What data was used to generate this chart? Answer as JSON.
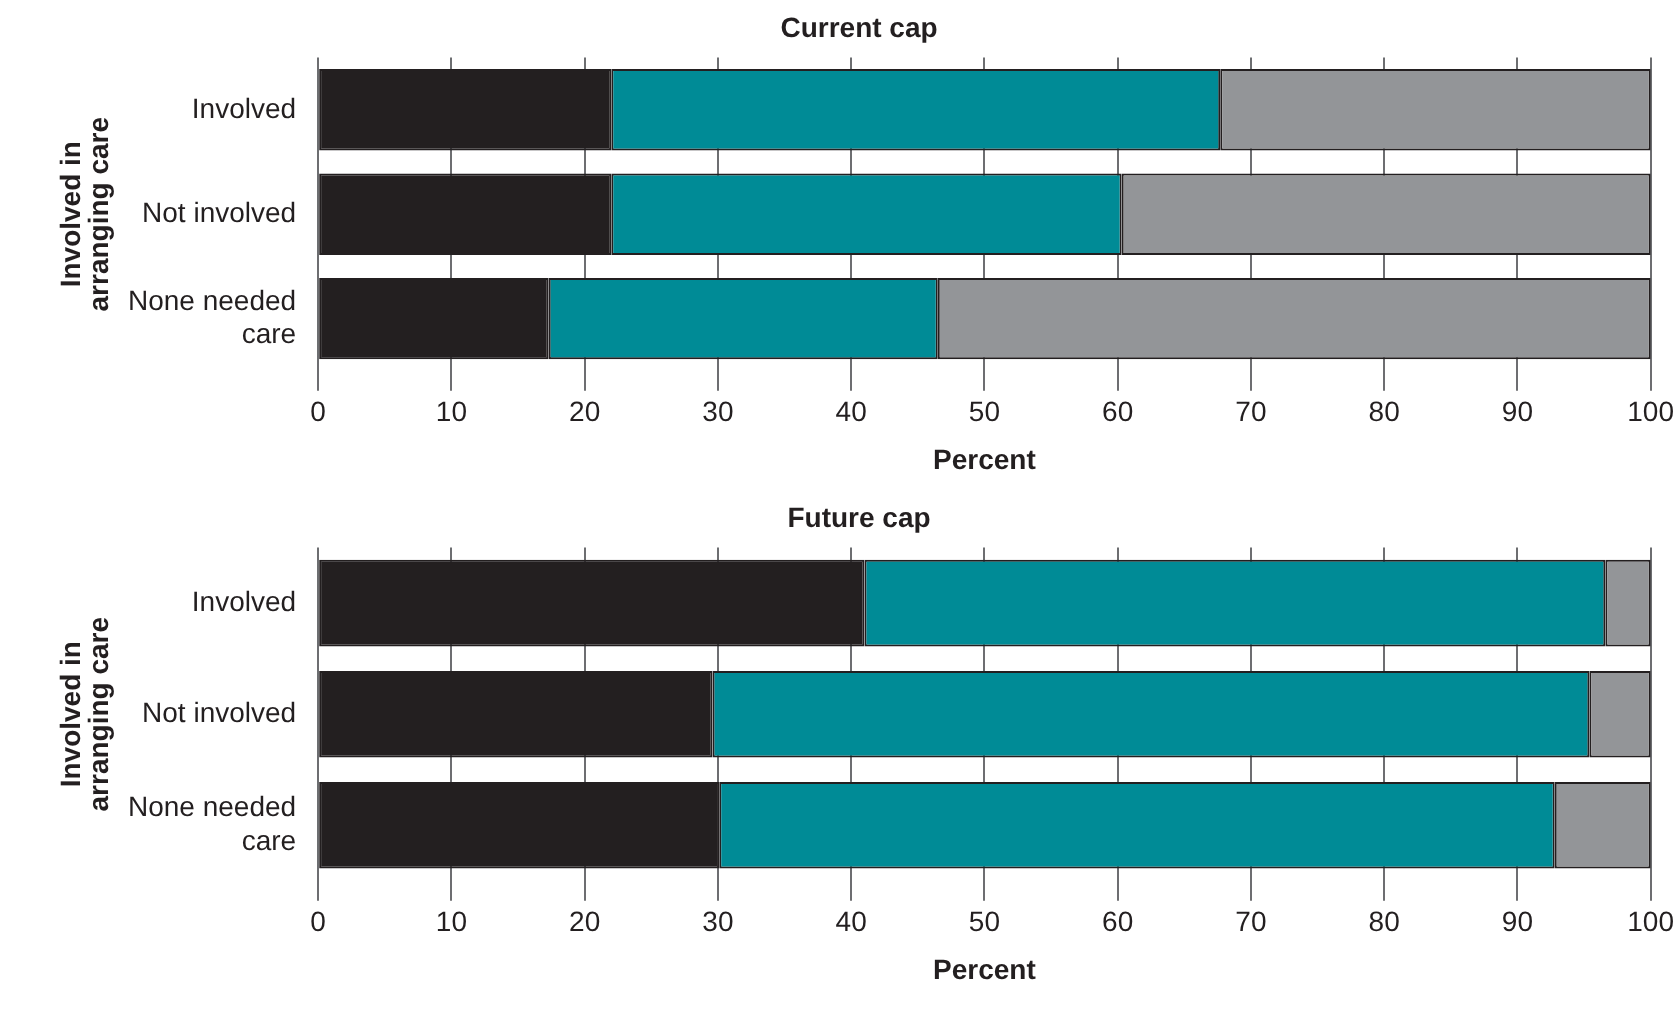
{
  "chart_data": [
    {
      "type": "bar",
      "orientation": "horizontal",
      "stacked": true,
      "title": "Current cap",
      "xlabel": "Percent",
      "ylabel": "Involved in\narranging care",
      "categories": [
        "Involved",
        "Not involved",
        "None needed care"
      ],
      "xlim": [
        0,
        100
      ],
      "xticks": [
        0,
        10,
        20,
        30,
        40,
        50,
        60,
        70,
        80,
        90,
        100
      ],
      "grid": "x",
      "legend": false,
      "series": [
        {
          "color": "#231f20",
          "values": [
            22,
            22,
            17.3
          ]
        },
        {
          "color": "#008b96",
          "values": [
            45.7,
            38.3,
            29.2
          ]
        },
        {
          "color": "#939598",
          "values": [
            32.3,
            39.7,
            53.5
          ]
        }
      ]
    },
    {
      "type": "bar",
      "orientation": "horizontal",
      "stacked": true,
      "title": "Future cap",
      "xlabel": "Percent",
      "ylabel": "Involved in\narranging care",
      "categories": [
        "Involved",
        "Not involved",
        "None needed care"
      ],
      "xlim": [
        0,
        100
      ],
      "xticks": [
        0,
        10,
        20,
        30,
        40,
        50,
        60,
        70,
        80,
        90,
        100
      ],
      "grid": "x",
      "legend": false,
      "series": [
        {
          "color": "#231f20",
          "values": [
            41,
            29.6,
            30.1
          ]
        },
        {
          "color": "#008b96",
          "values": [
            55.6,
            65.8,
            62.7
          ]
        },
        {
          "color": "#939598",
          "values": [
            3.4,
            4.6,
            7.2
          ]
        }
      ]
    }
  ]
}
